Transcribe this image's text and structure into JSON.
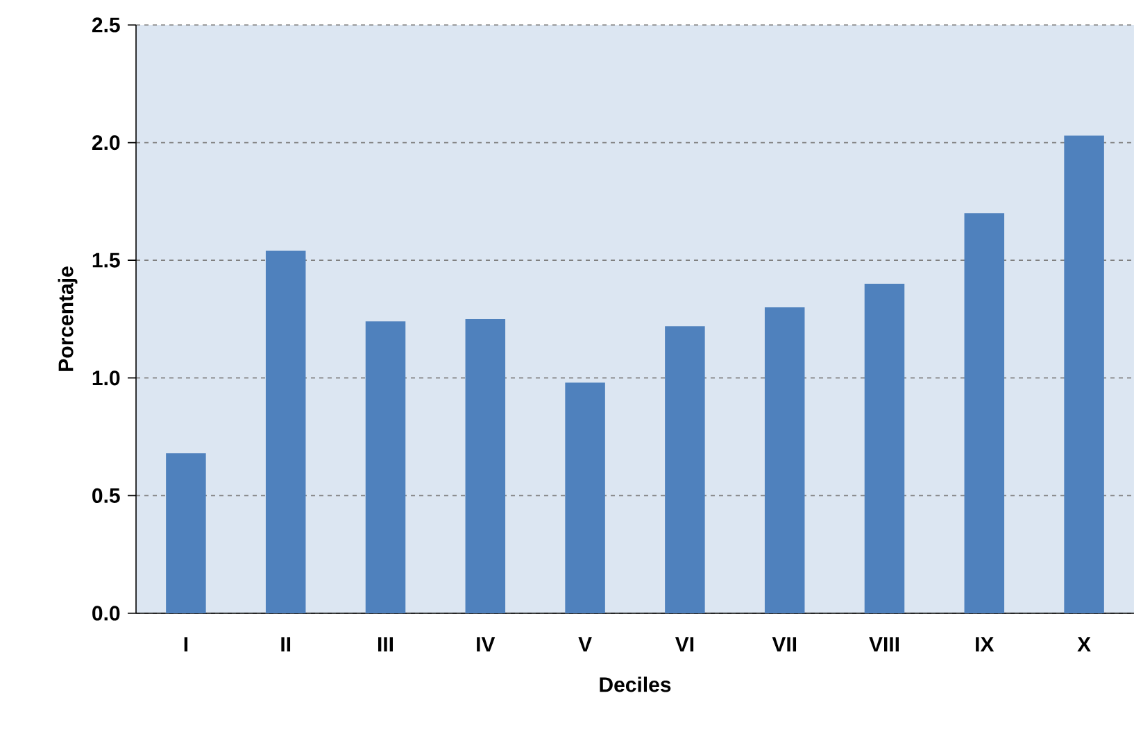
{
  "chart_data": {
    "type": "bar",
    "xlabel": "Deciles",
    "ylabel": "Porcentaje",
    "categories": [
      "I",
      "II",
      "III",
      "IV",
      "V",
      "VI",
      "VII",
      "VIII",
      "IX",
      "X"
    ],
    "values": [
      0.68,
      1.54,
      1.24,
      1.25,
      0.98,
      1.22,
      1.3,
      1.4,
      1.7,
      2.03
    ],
    "color": "#4f81bd",
    "ylim": [
      0,
      2.5
    ],
    "yticks": [
      {
        "value": 0,
        "label": "0.0"
      },
      {
        "value": 0.5,
        "label": "0.5"
      },
      {
        "value": 1,
        "label": "1.0"
      },
      {
        "value": 1.5,
        "label": "1.5"
      },
      {
        "value": 2,
        "label": "2.0"
      },
      {
        "value": 2.5,
        "label": "2.5"
      }
    ],
    "grid": "y"
  }
}
